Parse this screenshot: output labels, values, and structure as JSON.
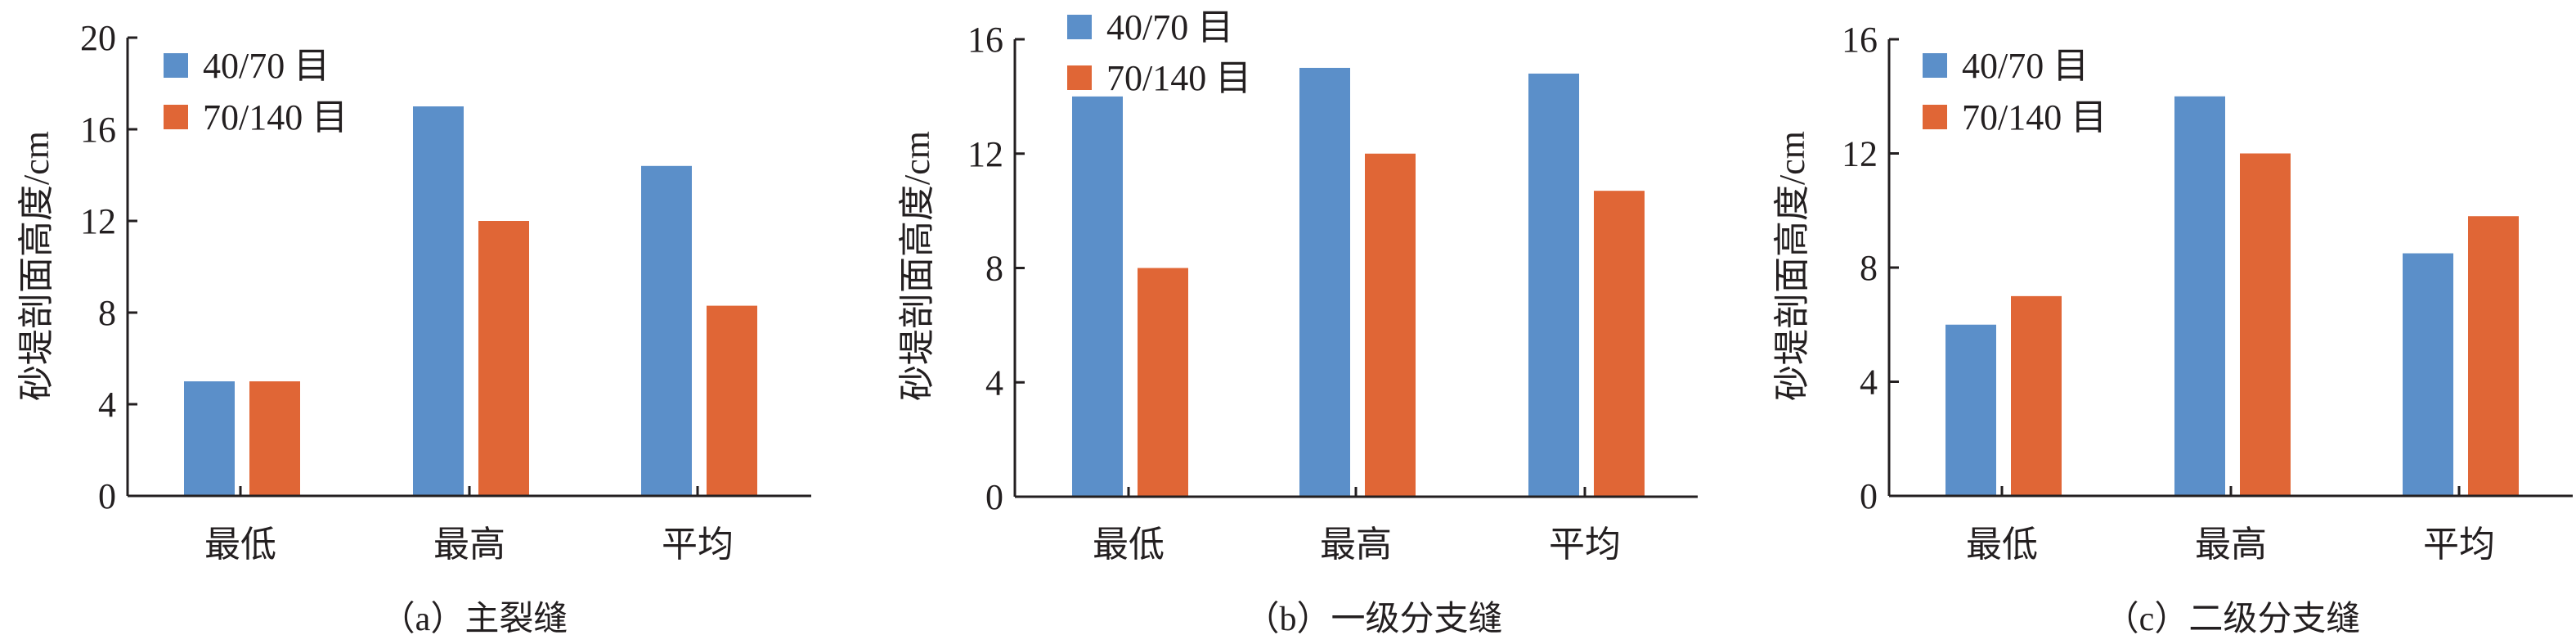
{
  "chart_data": [
    {
      "type": "bar",
      "title": "（a）主裂缝",
      "xlabel": "",
      "ylabel": "砂堤剖面高度/cm",
      "categories": [
        "最低",
        "最高",
        "平均"
      ],
      "ylim": [
        0,
        20
      ],
      "yticks": [
        0,
        4,
        8,
        12,
        16,
        20
      ],
      "legend_position": "top-left",
      "series": [
        {
          "name": "40/70 目",
          "color": "#5b8fc9",
          "values": [
            5.0,
            17.0,
            14.4
          ]
        },
        {
          "name": "70/140 目",
          "color": "#e06636",
          "values": [
            5.0,
            12.0,
            8.3
          ]
        }
      ]
    },
    {
      "type": "bar",
      "title": "（b）一级分支缝",
      "xlabel": "",
      "ylabel": "砂堤剖面高度/cm",
      "categories": [
        "最低",
        "最高",
        "平均"
      ],
      "ylim": [
        0,
        16
      ],
      "yticks": [
        0,
        4,
        8,
        12,
        16
      ],
      "legend_position": "top-left",
      "series": [
        {
          "name": "40/70 目",
          "color": "#5b8fc9",
          "values": [
            14.0,
            15.0,
            14.8
          ]
        },
        {
          "name": "70/140 目",
          "color": "#e06636",
          "values": [
            8.0,
            12.0,
            10.7
          ]
        }
      ]
    },
    {
      "type": "bar",
      "title": "（c）二级分支缝",
      "xlabel": "",
      "ylabel": "砂堤剖面高度/cm",
      "categories": [
        "最低",
        "最高",
        "平均"
      ],
      "ylim": [
        0,
        16
      ],
      "yticks": [
        0,
        4,
        8,
        12,
        16
      ],
      "legend_position": "top-left",
      "series": [
        {
          "name": "40/70 目",
          "color": "#5b8fc9",
          "values": [
            6.0,
            14.0,
            8.5
          ]
        },
        {
          "name": "70/140 目",
          "color": "#e06636",
          "values": [
            7.0,
            12.0,
            9.8
          ]
        }
      ]
    }
  ]
}
